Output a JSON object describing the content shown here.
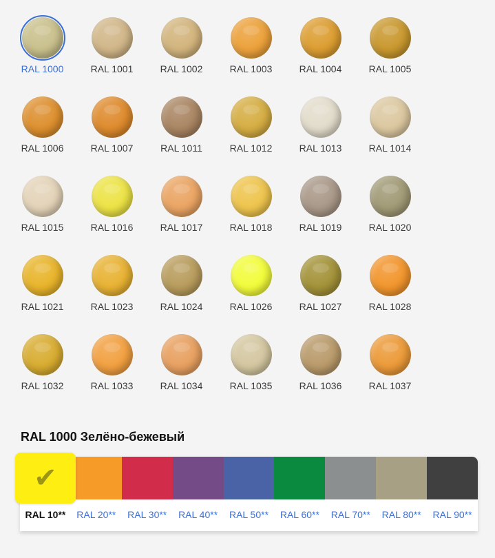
{
  "selected": "RAL 1000",
  "swatches": [
    {
      "label": "RAL 1000",
      "color": "#c9c08c"
    },
    {
      "label": "RAL 1001",
      "color": "#d1b688"
    },
    {
      "label": "RAL 1002",
      "color": "#d2b47c"
    },
    {
      "label": "RAL 1003",
      "color": "#eca13a"
    },
    {
      "label": "RAL 1004",
      "color": "#dc9d30"
    },
    {
      "label": "RAL 1005",
      "color": "#c9982e"
    },
    {
      "label": "RAL 1006",
      "color": "#dd8f2e"
    },
    {
      "label": "RAL 1007",
      "color": "#de8a2c"
    },
    {
      "label": "RAL 1011",
      "color": "#a98562"
    },
    {
      "label": "RAL 1012",
      "color": "#d5ad42"
    },
    {
      "label": "RAL 1013",
      "color": "#e2dccb"
    },
    {
      "label": "RAL 1014",
      "color": "#dcc8a0"
    },
    {
      "label": "RAL 1015",
      "color": "#e3d3b8"
    },
    {
      "label": "RAL 1016",
      "color": "#ece345"
    },
    {
      "label": "RAL 1017",
      "color": "#eaa462"
    },
    {
      "label": "RAL 1018",
      "color": "#eec44c"
    },
    {
      "label": "RAL 1019",
      "color": "#a99888"
    },
    {
      "label": "RAL 1020",
      "color": "#a19a76"
    },
    {
      "label": "RAL 1021",
      "color": "#e8b42a"
    },
    {
      "label": "RAL 1023",
      "color": "#e8b232"
    },
    {
      "label": "RAL 1024",
      "color": "#b89c5c"
    },
    {
      "label": "RAL 1026",
      "color": "#f2fc3a"
    },
    {
      "label": "RAL 1027",
      "color": "#a39238"
    },
    {
      "label": "RAL 1028",
      "color": "#f2952c"
    },
    {
      "label": "RAL 1032",
      "color": "#d8ac30"
    },
    {
      "label": "RAL 1033",
      "color": "#f2a040"
    },
    {
      "label": "RAL 1034",
      "color": "#e8a060"
    },
    {
      "label": "RAL 1035",
      "color": "#d4c7a0"
    },
    {
      "label": "RAL 1036",
      "color": "#b99a6a"
    },
    {
      "label": "RAL 1037",
      "color": "#ec9a38"
    }
  ],
  "title": "RAL 1000 Зелёно-бежевый",
  "groups": [
    {
      "label": "RAL 10**",
      "color": "#ffee12",
      "active": true
    },
    {
      "label": "RAL 20**",
      "color": "#f69a28"
    },
    {
      "label": "RAL 30**",
      "color": "#d12c4a"
    },
    {
      "label": "RAL 40**",
      "color": "#744b87"
    },
    {
      "label": "RAL 50**",
      "color": "#4a63a6"
    },
    {
      "label": "RAL 60**",
      "color": "#0a8a3e"
    },
    {
      "label": "RAL 70**",
      "color": "#8c8f8f"
    },
    {
      "label": "RAL 80**",
      "color": "#a8a084"
    },
    {
      "label": "RAL 90**",
      "color": "#404040"
    }
  ],
  "check_icon": "✔"
}
